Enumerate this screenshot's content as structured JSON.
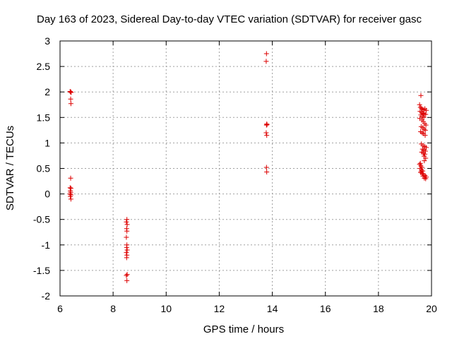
{
  "chart_data": {
    "type": "scatter",
    "title": "Day 163 of 2023, Sidereal Day-to-day VTEC variation (SDTVAR) for receiver gasc",
    "xlabel": "GPS time / hours",
    "ylabel": "SDTVAR / TECUs",
    "xlim": [
      6,
      20
    ],
    "ylim": [
      -2,
      3
    ],
    "xticks": [
      "6",
      "8",
      "10",
      "12",
      "14",
      "16",
      "18",
      "20"
    ],
    "yticks": [
      "-2",
      "-1.5",
      "-1",
      "-0.5",
      "0",
      "0.5",
      "1",
      "1.5",
      "2",
      "2.5",
      "3"
    ],
    "grid": true,
    "marker": "+",
    "color": "#dd0000",
    "series": [
      {
        "points": [
          [
            6.38,
            2.01
          ],
          [
            6.4,
            2.0
          ],
          [
            6.42,
            1.99
          ],
          [
            6.4,
            1.86
          ],
          [
            6.41,
            1.77
          ],
          [
            6.4,
            0.31
          ],
          [
            6.38,
            0.12
          ],
          [
            6.41,
            0.11
          ],
          [
            6.39,
            0.06
          ],
          [
            6.4,
            0.03
          ],
          [
            6.38,
            0.0
          ],
          [
            6.41,
            -0.02
          ],
          [
            6.39,
            -0.05
          ],
          [
            6.41,
            -0.1
          ],
          [
            8.52,
            -0.5
          ],
          [
            8.5,
            -0.55
          ],
          [
            8.53,
            -0.6
          ],
          [
            8.51,
            -0.68
          ],
          [
            8.52,
            -0.73
          ],
          [
            8.5,
            -0.85
          ],
          [
            8.52,
            -1.0
          ],
          [
            8.51,
            -1.05
          ],
          [
            8.53,
            -1.1
          ],
          [
            8.5,
            -1.15
          ],
          [
            8.52,
            -1.2
          ],
          [
            8.51,
            -1.25
          ],
          [
            8.53,
            -1.58
          ],
          [
            8.5,
            -1.6
          ],
          [
            8.52,
            -1.7
          ],
          [
            13.78,
            2.75
          ],
          [
            13.77,
            2.6
          ],
          [
            13.79,
            1.37
          ],
          [
            13.78,
            1.35
          ],
          [
            13.8,
            1.36
          ],
          [
            13.77,
            1.2
          ],
          [
            13.79,
            1.15
          ],
          [
            13.78,
            0.52
          ],
          [
            13.79,
            0.43
          ],
          [
            19.6,
            1.93
          ],
          [
            19.55,
            1.75
          ],
          [
            19.58,
            1.7
          ],
          [
            19.62,
            1.68
          ],
          [
            19.65,
            1.66
          ],
          [
            19.7,
            1.65
          ],
          [
            19.75,
            1.67
          ],
          [
            19.8,
            1.64
          ],
          [
            19.57,
            1.62
          ],
          [
            19.63,
            1.6
          ],
          [
            19.68,
            1.58
          ],
          [
            19.73,
            1.57
          ],
          [
            19.78,
            1.56
          ],
          [
            19.6,
            1.55
          ],
          [
            19.66,
            1.52
          ],
          [
            19.71,
            1.5
          ],
          [
            19.56,
            1.48
          ],
          [
            19.64,
            1.45
          ],
          [
            19.69,
            1.42
          ],
          [
            19.74,
            1.38
          ],
          [
            19.79,
            1.35
          ],
          [
            19.61,
            1.32
          ],
          [
            19.67,
            1.3
          ],
          [
            19.72,
            1.27
          ],
          [
            19.77,
            1.25
          ],
          [
            19.59,
            1.22
          ],
          [
            19.65,
            1.2
          ],
          [
            19.7,
            1.18
          ],
          [
            19.76,
            1.15
          ],
          [
            19.62,
            0.98
          ],
          [
            19.68,
            0.95
          ],
          [
            19.74,
            0.93
          ],
          [
            19.8,
            0.91
          ],
          [
            19.66,
            0.88
          ],
          [
            19.71,
            0.86
          ],
          [
            19.77,
            0.84
          ],
          [
            19.63,
            0.82
          ],
          [
            19.69,
            0.8
          ],
          [
            19.75,
            0.78
          ],
          [
            19.72,
            0.74
          ],
          [
            19.78,
            0.7
          ],
          [
            19.73,
            0.65
          ],
          [
            19.58,
            0.6
          ],
          [
            19.55,
            0.58
          ],
          [
            19.6,
            0.55
          ],
          [
            19.64,
            0.52
          ],
          [
            19.57,
            0.5
          ],
          [
            19.62,
            0.47
          ],
          [
            19.67,
            0.45
          ],
          [
            19.59,
            0.42
          ],
          [
            19.65,
            0.4
          ],
          [
            19.7,
            0.38
          ],
          [
            19.76,
            0.36
          ],
          [
            19.8,
            0.33
          ],
          [
            19.73,
            0.31
          ],
          [
            19.78,
            0.3
          ],
          [
            19.68,
            0.35
          ],
          [
            19.61,
            0.44
          ]
        ]
      }
    ]
  }
}
